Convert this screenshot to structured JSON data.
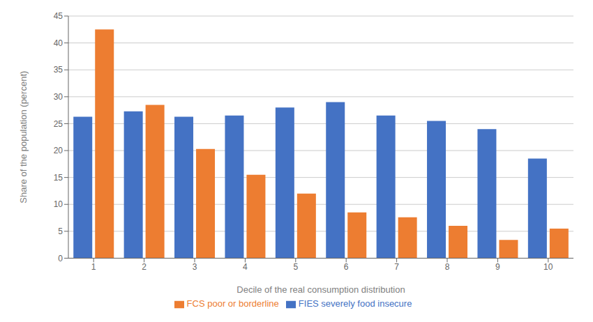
{
  "chart_data": {
    "type": "bar",
    "xlabel": "Decile of the real consumption distribution",
    "ylabel": "Share of the population (percent)",
    "categories": [
      "1",
      "2",
      "3",
      "4",
      "5",
      "6",
      "7",
      "8",
      "9",
      "10"
    ],
    "series": [
      {
        "name": "FIES severely food insecure",
        "color": "#4472C4",
        "values": [
          26.3,
          27.3,
          26.3,
          26.5,
          28.0,
          29.0,
          26.5,
          25.5,
          24.0,
          18.5
        ]
      },
      {
        "name": "FCS poor or borderline",
        "color": "#ED7D31",
        "values": [
          42.5,
          28.5,
          20.3,
          15.5,
          12.0,
          8.5,
          7.6,
          6.0,
          3.4,
          5.5
        ]
      }
    ],
    "ylim": [
      0,
      45
    ],
    "yticks": [
      0,
      5,
      10,
      15,
      20,
      25,
      30,
      35,
      40,
      45
    ],
    "grid": true,
    "legend": "bottom"
  }
}
